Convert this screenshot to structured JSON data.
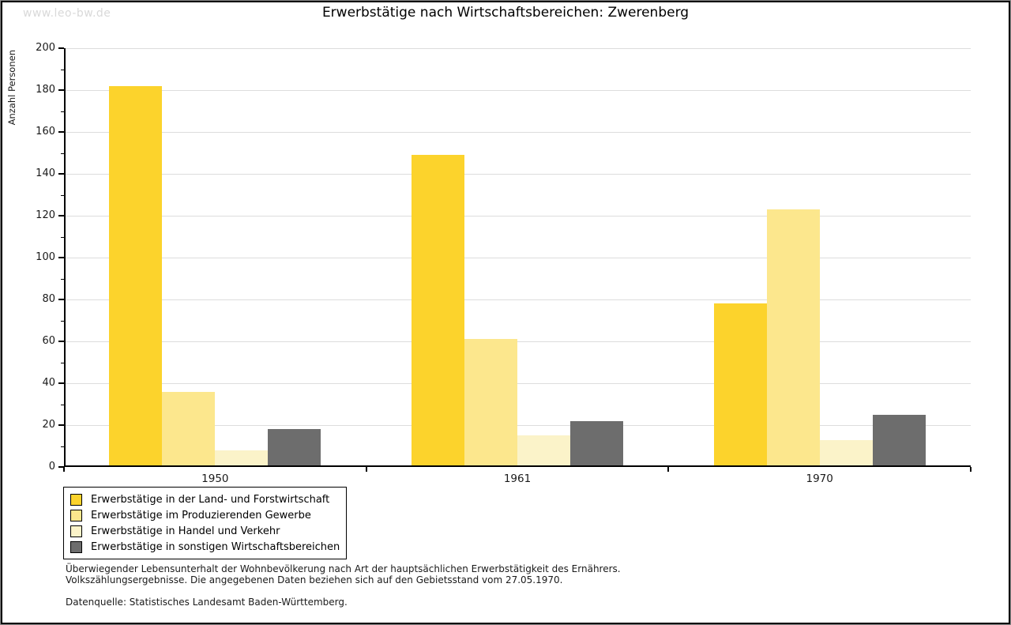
{
  "watermark": "www.leo-bw.de",
  "title": "Erwerbstätige nach Wirtschaftsbereichen: Zwerenberg",
  "chart_data": {
    "type": "bar",
    "title": "Erwerbstätige nach Wirtschaftsbereichen: Zwerenberg",
    "categories": [
      "1950",
      "1961",
      "1970"
    ],
    "series": [
      {
        "name": "Erwerbstätige in der Land- und Forstwirtschaft",
        "color": "#fcd32c",
        "values": [
          182,
          149,
          78
        ]
      },
      {
        "name": "Erwerbstätige im Produzierenden Gewerbe",
        "color": "#fce78d",
        "values": [
          36,
          61,
          123
        ]
      },
      {
        "name": "Erwerbstätige in Handel und Verkehr",
        "color": "#fbf3c9",
        "values": [
          8,
          15,
          13
        ]
      },
      {
        "name": "Erwerbstätige in sonstigen Wirtschaftsbereichen",
        "color": "#6d6d6d",
        "values": [
          18,
          22,
          25
        ]
      }
    ],
    "xlabel": "",
    "ylabel": "Anzahl Personen",
    "ylim": [
      0,
      200
    ],
    "ytick_step": 20,
    "minor_tick_step": 10,
    "grid": true,
    "gridline_color": "#dddddd",
    "legend_position": "bottom-left"
  },
  "footnote": {
    "line1": "Überwiegender Lebensunterhalt der Wohnbevölkerung nach Art der hauptsächlichen Erwerbstätigkeit des Ernährers.",
    "line2": "Volkszählungsergebnisse. Die angegebenen Daten beziehen sich auf den Gebietsstand vom 27.05.1970.",
    "source": "Datenquelle: Statistisches Landesamt Baden-Württemberg."
  }
}
